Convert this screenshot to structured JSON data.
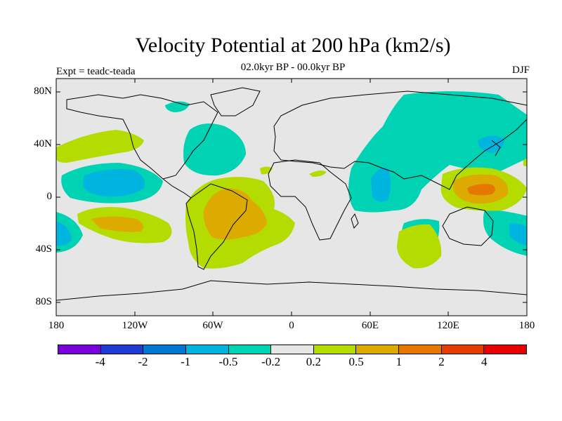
{
  "title": "Velocity Potential at 200 hPa (km2/s)",
  "subtitle": "02.0kyr BP - 00.0kyr BP",
  "experiment": "Expt = teadc-teada",
  "season": "DJF",
  "map": {
    "lon_range": [
      -180,
      180
    ],
    "lat_range": [
      -90,
      90
    ],
    "lat_ticks": [
      "80N",
      "40N",
      "0",
      "40S",
      "80S"
    ],
    "lon_ticks": [
      "180",
      "120W",
      "60W",
      "0",
      "60E",
      "120E",
      "180"
    ],
    "background_color": "#e6e6e6"
  },
  "colorbar": {
    "colors": [
      "#7a00dc",
      "#1e3cd2",
      "#0078d2",
      "#00b4e0",
      "#00d2b4",
      "#e6e6e6",
      "#b4dc00",
      "#dcaa00",
      "#e67800",
      "#e63c00",
      "#e60000"
    ],
    "labels": [
      "-4",
      "-2",
      "-1",
      "-0.5",
      "-0.2",
      "0.2",
      "0.5",
      "1",
      "2",
      "4"
    ]
  },
  "shading_legend": {
    "strong_negative": "#00b4e0",
    "weak_negative": "#00d2b4",
    "weak_positive": "#b4dc00",
    "moderate_positive": "#dcaa00",
    "strong_positive": "#e67800"
  }
}
